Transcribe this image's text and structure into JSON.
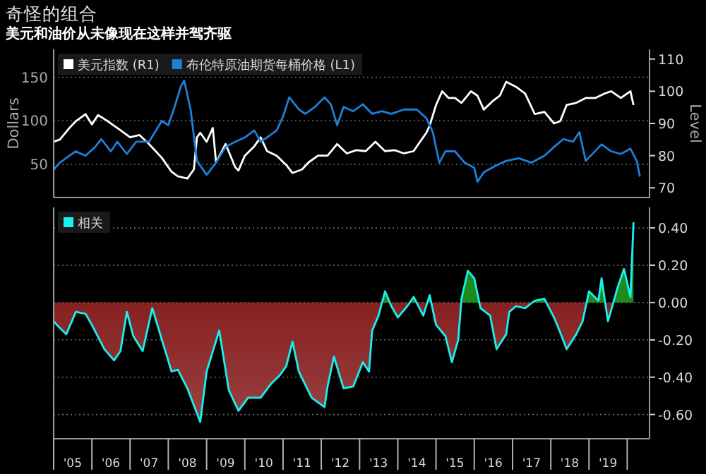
{
  "chart_data": [
    {
      "type": "line",
      "title": "奇怪的组合",
      "subtitle": "美元和油价从未像现在这样并驾齐驱",
      "ylabel": "Dollars",
      "y2label": "Level",
      "legend": "top left",
      "grid": "y",
      "tick_labels": "y",
      "xlim": [
        "2005-01",
        "2020-08"
      ],
      "ylim": [
        12,
        182
      ],
      "yticks": [
        50,
        100,
        150
      ],
      "y2lim": [
        67,
        113
      ],
      "y2ticks": [
        70,
        80,
        90,
        100,
        110
      ],
      "series": [
        {
          "name": "美元指数 (R1)",
          "color": "#ffffff",
          "axis": "y2",
          "x": [
            "2005-01",
            "2005-03",
            "2005-06",
            "2005-08",
            "2005-11",
            "2006-01",
            "2006-03",
            "2006-06",
            "2006-10",
            "2007-01",
            "2007-04",
            "2007-07",
            "2007-11",
            "2008-02",
            "2008-04",
            "2008-07",
            "2008-09",
            "2008-10",
            "2008-11",
            "2009-01",
            "2009-03",
            "2009-04",
            "2009-07",
            "2009-10",
            "2009-11",
            "2010-01",
            "2010-04",
            "2010-06",
            "2010-08",
            "2010-11",
            "2011-02",
            "2011-04",
            "2011-07",
            "2011-09",
            "2011-12",
            "2012-03",
            "2012-06",
            "2012-09",
            "2012-12",
            "2013-03",
            "2013-06",
            "2013-09",
            "2013-12",
            "2014-03",
            "2014-06",
            "2014-08",
            "2014-10",
            "2014-11",
            "2015-01",
            "2015-03",
            "2015-05",
            "2015-07",
            "2015-09",
            "2015-12",
            "2016-02",
            "2016-04",
            "2016-07",
            "2016-09",
            "2016-11",
            "2017-02",
            "2017-05",
            "2017-08",
            "2017-11",
            "2018-02",
            "2018-04",
            "2018-06",
            "2018-09",
            "2018-12",
            "2019-03",
            "2019-06",
            "2019-08",
            "2019-11",
            "2020-02",
            "2020-03"
          ],
          "values": [
            84.3,
            85,
            88.6,
            90.7,
            92.9,
            89.7,
            92.6,
            90.7,
            87.9,
            85.7,
            86.4,
            83.6,
            79.3,
            75,
            73.6,
            72.9,
            75.7,
            85.7,
            87.1,
            84.3,
            88.6,
            77.9,
            83.6,
            76.4,
            75.4,
            80,
            82.9,
            85.7,
            81.4,
            80,
            77.1,
            74.6,
            75.7,
            77.9,
            80,
            80,
            83.6,
            80.7,
            81.7,
            81.4,
            84.3,
            81.4,
            81.7,
            80.7,
            81.4,
            84.3,
            87.1,
            89.3,
            95.7,
            100,
            97.9,
            97.9,
            96.4,
            100,
            98.6,
            94.3,
            97.1,
            98.6,
            102.9,
            101.4,
            99.3,
            92.9,
            93.6,
            90,
            90.7,
            95.7,
            96.4,
            97.9,
            97.9,
            99.3,
            100,
            97.9,
            100,
            95.7
          ]
        },
        {
          "name": "布伦特原油期货每桶价格 (L1)",
          "color": "#1e7fd8",
          "x": [
            "2005-01",
            "2005-03",
            "2005-06",
            "2005-08",
            "2005-11",
            "2006-02",
            "2006-04",
            "2006-07",
            "2006-09",
            "2006-12",
            "2007-03",
            "2007-07",
            "2007-11",
            "2008-01",
            "2008-03",
            "2008-05",
            "2008-06",
            "2008-08",
            "2008-10",
            "2009-01",
            "2009-04",
            "2009-07",
            "2009-10",
            "2010-01",
            "2010-04",
            "2010-06",
            "2010-08",
            "2010-11",
            "2011-01",
            "2011-03",
            "2011-06",
            "2011-08",
            "2011-11",
            "2012-02",
            "2012-04",
            "2012-06",
            "2012-08",
            "2012-11",
            "2013-02",
            "2013-05",
            "2013-08",
            "2013-11",
            "2014-03",
            "2014-07",
            "2014-10",
            "2014-12",
            "2015-02",
            "2015-04",
            "2015-07",
            "2015-10",
            "2016-01",
            "2016-02",
            "2016-04",
            "2016-08",
            "2016-11",
            "2017-03",
            "2017-07",
            "2017-11",
            "2018-02",
            "2018-05",
            "2018-08",
            "2018-10",
            "2018-12",
            "2019-05",
            "2019-08",
            "2019-11",
            "2020-02",
            "2020-04",
            "2020-05"
          ],
          "values": [
            44,
            52,
            60,
            65,
            60,
            70,
            79,
            65,
            76,
            62,
            76,
            76,
            100,
            95,
            116,
            140,
            146,
            113,
            54,
            38,
            52,
            70,
            76,
            81,
            89,
            76,
            81,
            89,
            105,
            127,
            113,
            108,
            116,
            127,
            119,
            95,
            116,
            111,
            119,
            108,
            111,
            108,
            113,
            113,
            103,
            87,
            52,
            65,
            65,
            52,
            46,
            30,
            41,
            49,
            54,
            57,
            52,
            60,
            70,
            79,
            76,
            87,
            54,
            73,
            65,
            62,
            68,
            54,
            36
          ]
        }
      ]
    },
    {
      "type": "area",
      "legend": "top left",
      "grid": "y",
      "xlim": [
        "2005-01",
        "2020-08"
      ],
      "ylim": [
        -0.73,
        0.51
      ],
      "xticks": [
        {
          "value": "2005-01",
          "label": null
        },
        {
          "value": "2005-07",
          "label": "'05"
        },
        {
          "value": "2006-01",
          "label": null
        },
        {
          "value": "2006-07",
          "label": "'06"
        },
        {
          "value": "2007-01",
          "label": null
        },
        {
          "value": "2007-07",
          "label": "'07"
        },
        {
          "value": "2008-01",
          "label": null
        },
        {
          "value": "2008-07",
          "label": "'08"
        },
        {
          "value": "2009-01",
          "label": null
        },
        {
          "value": "2009-07",
          "label": "'09"
        },
        {
          "value": "2010-01",
          "label": null
        },
        {
          "value": "2010-07",
          "label": "'10"
        },
        {
          "value": "2011-01",
          "label": null
        },
        {
          "value": "2011-07",
          "label": "'11"
        },
        {
          "value": "2012-01",
          "label": null
        },
        {
          "value": "2012-07",
          "label": "'12"
        },
        {
          "value": "2013-01",
          "label": null
        },
        {
          "value": "2013-07",
          "label": "'13"
        },
        {
          "value": "2014-01",
          "label": null
        },
        {
          "value": "2014-07",
          "label": "'14"
        },
        {
          "value": "2015-01",
          "label": null
        },
        {
          "value": "2015-07",
          "label": "'15"
        },
        {
          "value": "2016-01",
          "label": null
        },
        {
          "value": "2016-07",
          "label": "'16"
        },
        {
          "value": "2017-01",
          "label": null
        },
        {
          "value": "2017-07",
          "label": "'17"
        },
        {
          "value": "2018-01",
          "label": null
        },
        {
          "value": "2018-07",
          "label": "'18"
        },
        {
          "value": "2019-01",
          "label": null
        },
        {
          "value": "2019-07",
          "label": "'19"
        },
        {
          "value": "2020-01",
          "label": null
        }
      ],
      "yticks": [
        {
          "value": 0.4,
          "label": "0.40"
        },
        {
          "value": 0.2,
          "label": "0.20"
        },
        {
          "value": 0,
          "label": "0.00"
        },
        {
          "value": -0.2,
          "label": "-0.20"
        },
        {
          "value": -0.4,
          "label": "-0.40"
        },
        {
          "value": -0.6,
          "label": "-0.60"
        }
      ],
      "series": [
        {
          "name": "相关",
          "color": "#19f0f0",
          "x": [
            "2005-01",
            "2005-02",
            "2005-05",
            "2005-08",
            "2005-11",
            "2006-01",
            "2006-05",
            "2006-08",
            "2006-10",
            "2006-12",
            "2007-02",
            "2007-05",
            "2007-08",
            "2007-11",
            "2008-02",
            "2008-04",
            "2008-07",
            "2008-11",
            "2009-01",
            "2009-05",
            "2009-08",
            "2009-11",
            "2010-02",
            "2010-06",
            "2010-09",
            "2010-12",
            "2011-02",
            "2011-04",
            "2011-06",
            "2011-10",
            "2012-02",
            "2012-03",
            "2012-05",
            "2012-08",
            "2012-11",
            "2013-02",
            "2013-04",
            "2013-05",
            "2013-07",
            "2013-09",
            "2013-11",
            "2014-01",
            "2014-04",
            "2014-06",
            "2014-09",
            "2014-11",
            "2015-01",
            "2015-04",
            "2015-06",
            "2015-08",
            "2015-09",
            "2015-11",
            "2016-01",
            "2016-03",
            "2016-06",
            "2016-08",
            "2016-11",
            "2016-12",
            "2017-02",
            "2017-05",
            "2017-08",
            "2017-11",
            "2018-02",
            "2018-04",
            "2018-06",
            "2018-09",
            "2018-11",
            "2019-01",
            "2019-04",
            "2019-05",
            "2019-07",
            "2019-10",
            "2019-12",
            "2020-02",
            "2020-03"
          ],
          "values": [
            -0.1,
            -0.12,
            -0.17,
            -0.05,
            -0.06,
            -0.12,
            -0.25,
            -0.31,
            -0.26,
            -0.05,
            -0.18,
            -0.26,
            -0.03,
            -0.2,
            -0.37,
            -0.36,
            -0.46,
            -0.64,
            -0.37,
            -0.15,
            -0.47,
            -0.58,
            -0.51,
            -0.51,
            -0.44,
            -0.39,
            -0.34,
            -0.21,
            -0.37,
            -0.51,
            -0.56,
            -0.45,
            -0.29,
            -0.46,
            -0.45,
            -0.32,
            -0.37,
            -0.15,
            -0.07,
            0.06,
            -0.02,
            -0.08,
            -0.02,
            0.03,
            -0.07,
            0.04,
            -0.12,
            -0.18,
            -0.32,
            -0.2,
            0.02,
            0.17,
            0.13,
            -0.03,
            -0.07,
            -0.25,
            -0.17,
            -0.05,
            -0.02,
            -0.03,
            0.01,
            0.02,
            -0.08,
            -0.16,
            -0.25,
            -0.17,
            -0.1,
            0.06,
            0.01,
            0.13,
            -0.1,
            0.08,
            0.18,
            0.03,
            0.43
          ]
        }
      ]
    }
  ]
}
